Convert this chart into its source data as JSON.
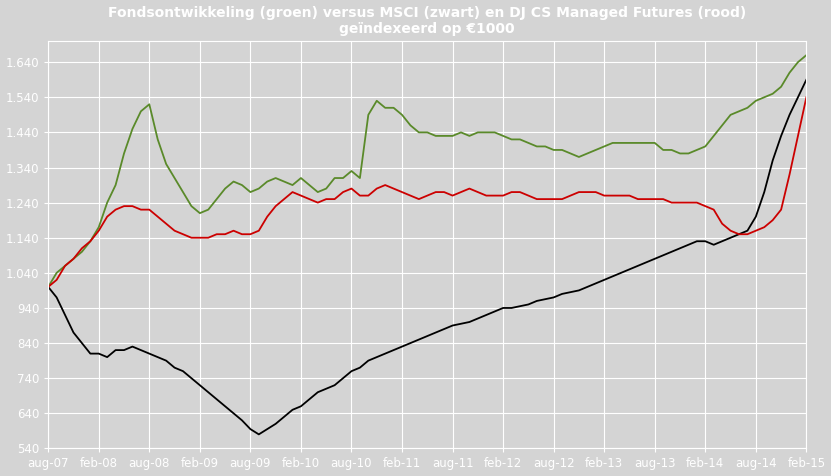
{
  "title_line1": "Fondsontwikkeling (groen) versus MSCI (zwart) en DJ CS Managed Futures (rood)",
  "title_line2": "geïndexeerd op €1000",
  "background_color": "#d4d4d4",
  "plot_bg_color": "#d4d4d4",
  "grid_color": "#ffffff",
  "line_green_color": "#5a8a2a",
  "line_black_color": "#000000",
  "line_red_color": "#cc0000",
  "ylim": [
    540,
    1700
  ],
  "yticks": [
    540,
    640,
    740,
    840,
    940,
    1040,
    1140,
    1240,
    1340,
    1440,
    1540,
    1640
  ],
  "ytick_labels": [
    "540",
    "640",
    "740",
    "840",
    "940",
    "1.040",
    "1.140",
    "1.240",
    "1.340",
    "1.440",
    "1.540",
    "1.640"
  ],
  "xtick_labels": [
    "aug-07",
    "feb-08",
    "aug-08",
    "feb-09",
    "aug-09",
    "feb-10",
    "aug-10",
    "feb-11",
    "aug-11",
    "feb-12",
    "aug-12",
    "feb-13",
    "aug-13",
    "feb-14",
    "aug-14",
    "feb-15"
  ],
  "dates_months": [
    0,
    6,
    12,
    18,
    24,
    30,
    36,
    42,
    48,
    54,
    60,
    66,
    72,
    78,
    84,
    90
  ],
  "green_data": [
    1000,
    1040,
    1060,
    1080,
    1100,
    1130,
    1170,
    1240,
    1290,
    1380,
    1450,
    1500,
    1520,
    1420,
    1350,
    1310,
    1270,
    1230,
    1210,
    1220,
    1250,
    1280,
    1300,
    1290,
    1270,
    1280,
    1300,
    1310,
    1300,
    1290,
    1310,
    1290,
    1270,
    1280,
    1310,
    1310,
    1330,
    1310,
    1490,
    1530,
    1510,
    1510,
    1490,
    1460,
    1440,
    1440,
    1430,
    1430,
    1430,
    1440,
    1430,
    1440,
    1440,
    1440,
    1430,
    1420,
    1420,
    1410,
    1400,
    1400,
    1390,
    1390,
    1380,
    1370,
    1380,
    1390,
    1400,
    1410,
    1410,
    1410,
    1410,
    1410,
    1410,
    1390,
    1390,
    1380,
    1380,
    1390,
    1400,
    1430,
    1460,
    1490,
    1500,
    1510,
    1530,
    1540,
    1550,
    1570,
    1610,
    1640,
    1660
  ],
  "black_data": [
    1000,
    970,
    920,
    870,
    840,
    810,
    810,
    800,
    820,
    820,
    830,
    820,
    810,
    800,
    790,
    770,
    760,
    740,
    720,
    700,
    680,
    660,
    640,
    620,
    595,
    580,
    595,
    610,
    630,
    650,
    660,
    680,
    700,
    710,
    720,
    740,
    760,
    770,
    790,
    800,
    810,
    820,
    830,
    840,
    850,
    860,
    870,
    880,
    890,
    895,
    900,
    910,
    920,
    930,
    940,
    940,
    945,
    950,
    960,
    965,
    970,
    980,
    985,
    990,
    1000,
    1010,
    1020,
    1030,
    1040,
    1050,
    1060,
    1070,
    1080,
    1090,
    1100,
    1110,
    1120,
    1130,
    1130,
    1120,
    1130,
    1140,
    1150,
    1160,
    1200,
    1270,
    1360,
    1430,
    1490,
    1540,
    1590
  ],
  "red_data": [
    1000,
    1020,
    1060,
    1080,
    1110,
    1130,
    1160,
    1200,
    1220,
    1230,
    1230,
    1220,
    1220,
    1200,
    1180,
    1160,
    1150,
    1140,
    1140,
    1140,
    1150,
    1150,
    1160,
    1150,
    1150,
    1160,
    1200,
    1230,
    1250,
    1270,
    1260,
    1250,
    1240,
    1250,
    1250,
    1270,
    1280,
    1260,
    1260,
    1280,
    1290,
    1280,
    1270,
    1260,
    1250,
    1260,
    1270,
    1270,
    1260,
    1270,
    1280,
    1270,
    1260,
    1260,
    1260,
    1270,
    1270,
    1260,
    1250,
    1250,
    1250,
    1250,
    1260,
    1270,
    1270,
    1270,
    1260,
    1260,
    1260,
    1260,
    1250,
    1250,
    1250,
    1250,
    1240,
    1240,
    1240,
    1240,
    1230,
    1220,
    1180,
    1160,
    1150,
    1150,
    1160,
    1170,
    1190,
    1220,
    1320,
    1430,
    1540
  ],
  "n_points": 91,
  "title_fontsize": 10,
  "tick_fontsize": 8.5,
  "title_color": "#ffffff",
  "tick_color": "#ffffff",
  "linewidth": 1.3
}
